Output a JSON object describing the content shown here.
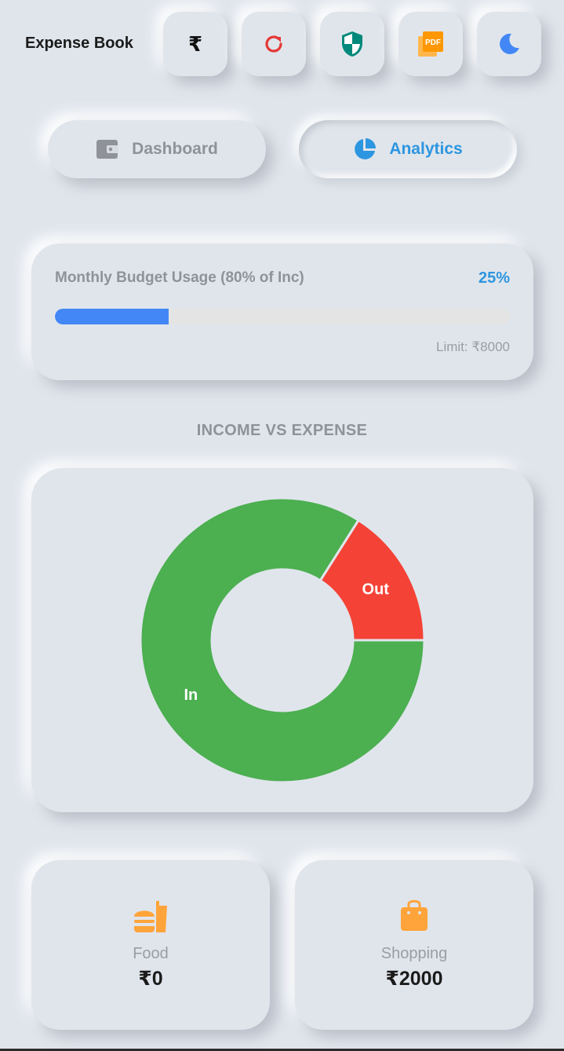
{
  "app": {
    "title": "Expense Book"
  },
  "toolbar": {
    "currency_symbol": "₹",
    "buttons": [
      {
        "name": "currency",
        "icon": "rupee-icon",
        "color": "#111111"
      },
      {
        "name": "reset",
        "icon": "refresh-icon",
        "color": "#e53935"
      },
      {
        "name": "security",
        "icon": "shield-icon",
        "color": "#00897b"
      },
      {
        "name": "pdf-export",
        "icon": "pdf-icon",
        "color": "#ff9800",
        "icon_text": "PDF"
      },
      {
        "name": "theme",
        "icon": "moon-icon",
        "color": "#4287f5"
      }
    ]
  },
  "tabs": [
    {
      "label": "Dashboard",
      "icon": "wallet-icon",
      "active": false,
      "color": "#8f9298"
    },
    {
      "label": "Analytics",
      "icon": "pie-chart-icon",
      "active": true,
      "color": "#2d96e0"
    }
  ],
  "budget": {
    "label": "Monthly Budget Usage (80% of Inc)",
    "percent_text": "25%",
    "progress": 0.25,
    "limit_text": "Limit: ₹8000",
    "bar_color": "#4287f5"
  },
  "section": {
    "title": "INCOME VS EXPENSE"
  },
  "chart_data": {
    "type": "pie",
    "donut": true,
    "title": "INCOME VS EXPENSE",
    "slices": [
      {
        "label": "In",
        "value": 84,
        "color": "#4caf50"
      },
      {
        "label": "Out",
        "value": 16,
        "color": "#f44336"
      }
    ]
  },
  "categories": [
    {
      "label": "Food",
      "amount": "₹0",
      "icon": "fastfood-icon",
      "color": "#ffa43a"
    },
    {
      "label": "Shopping",
      "amount": "₹2000",
      "icon": "shopping-bag-icon",
      "color": "#ffa43a"
    }
  ]
}
